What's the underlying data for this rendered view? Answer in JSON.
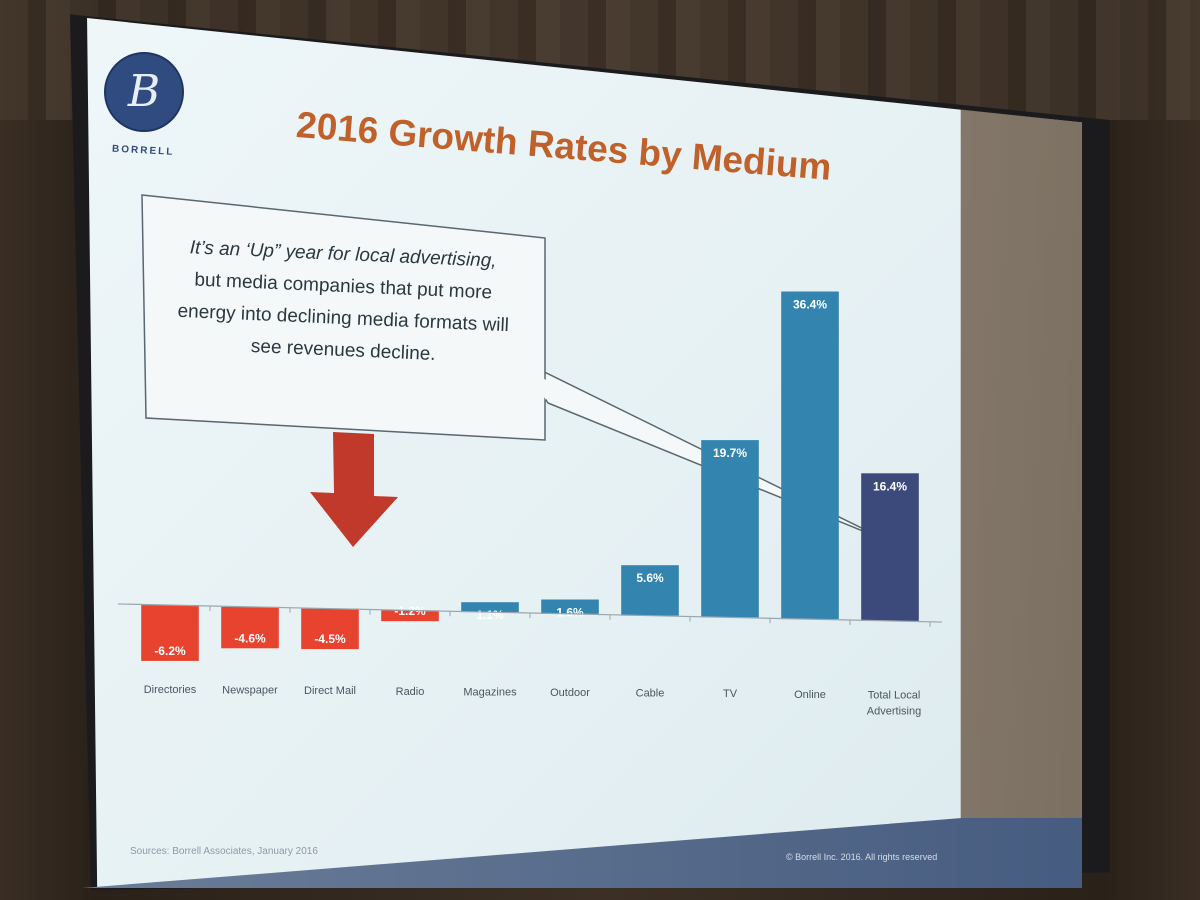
{
  "logo": {
    "glyph": "B",
    "name": "BORRELL"
  },
  "chart_data": {
    "type": "bar",
    "title": "2016 Growth Rates by Medium",
    "categories": [
      "Directories",
      "Newspaper",
      "Direct Mail",
      "Radio",
      "Magazines",
      "Outdoor",
      "Cable",
      "TV",
      "Online",
      "Total Local Advertising"
    ],
    "values": [
      -6.2,
      -4.6,
      -4.5,
      -1.2,
      1.1,
      1.6,
      5.6,
      19.7,
      36.4,
      16.4
    ],
    "value_labels": [
      "-6.2%",
      "-4.6%",
      "-4.5%",
      "-1.2%",
      "1.1%",
      "1.6%",
      "5.6%",
      "19.7%",
      "36.4%",
      "16.4%"
    ],
    "colors": {
      "negative": "#e8432f",
      "positive": "#3385b0",
      "total": "#3b4a7a"
    },
    "grid": false,
    "legend": "none"
  },
  "callout": {
    "lines": [
      "It’s an ‘Up” year for local advertising,",
      "but media companies that put more",
      "energy into declining media formats will",
      "see revenues decline."
    ]
  },
  "arrow": {
    "color": "#c0392b",
    "direction": "down"
  },
  "footer": {
    "source": "Sources: Borrell Associates, January 2016",
    "copyright": "© Borrell Inc. 2016. All rights reserved"
  }
}
